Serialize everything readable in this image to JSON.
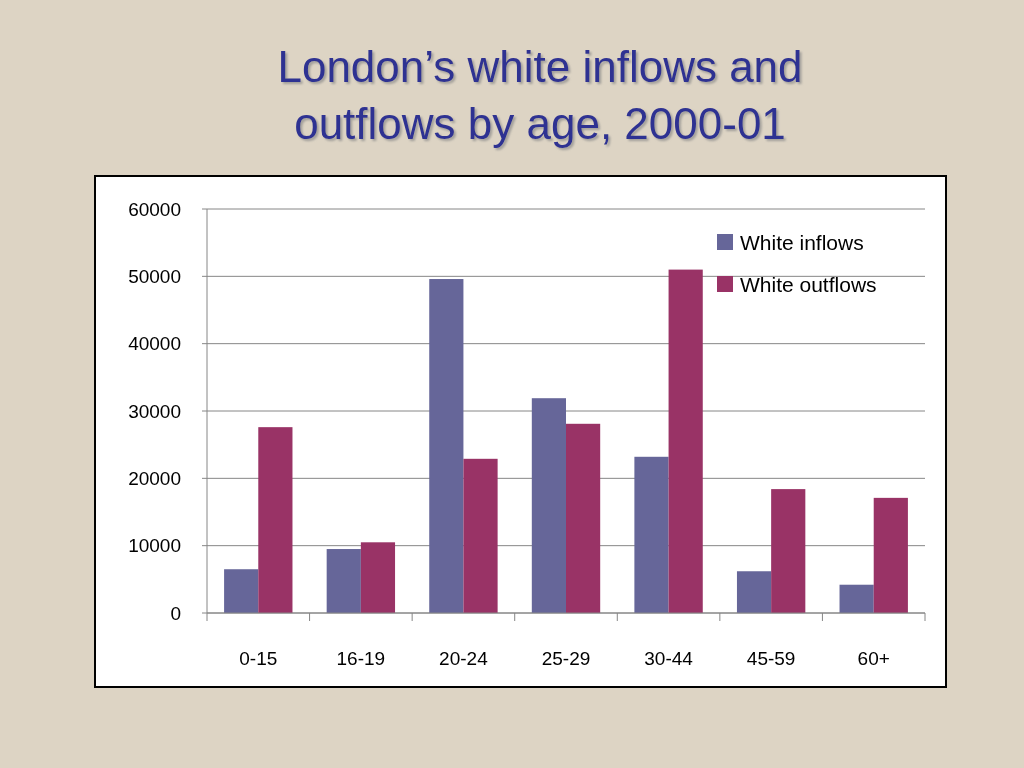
{
  "chart_data": {
    "type": "bar",
    "title": "London’s white inflows and outflows by age, 2000-01",
    "categories": [
      "0-15",
      "16-19",
      "20-24",
      "25-29",
      "30-44",
      "45-59",
      "60+"
    ],
    "series": [
      {
        "name": "White inflows",
        "color": "#666699",
        "values": [
          6500,
          9500,
          49600,
          31900,
          23200,
          6200,
          4200
        ]
      },
      {
        "name": "White outflows",
        "color": "#993366",
        "values": [
          27600,
          10500,
          22900,
          28100,
          51000,
          18400,
          17100
        ]
      }
    ],
    "ylim": [
      0,
      60000
    ],
    "yticks": [
      0,
      10000,
      20000,
      30000,
      40000,
      50000,
      60000
    ],
    "grid": "y",
    "legend": "top right"
  }
}
